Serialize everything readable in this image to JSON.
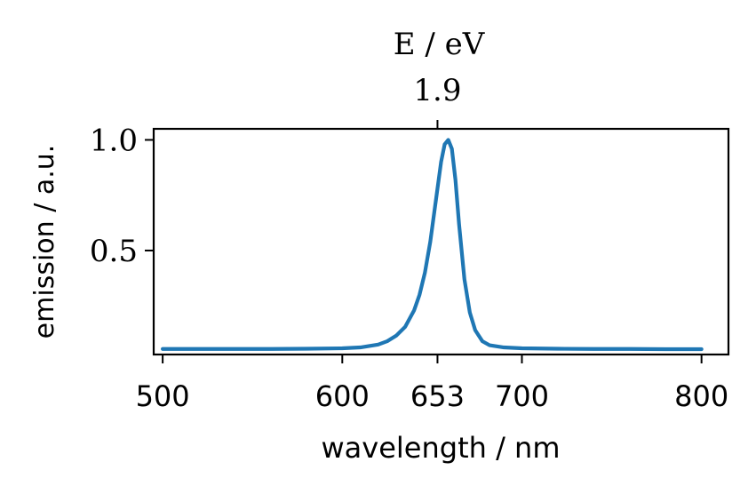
{
  "chart_data": {
    "type": "line",
    "xlabel": "wavelength / nm",
    "ylabel": "emission / a.u.",
    "top_axis_label": "E / eV",
    "xlim": [
      495,
      815
    ],
    "ylim": [
      0.03,
      1.05
    ],
    "x_ticks": [
      500,
      600,
      653,
      700,
      800
    ],
    "x_tick_labels": [
      "500",
      "600",
      "653",
      "700",
      "800"
    ],
    "y_ticks": [
      0.5,
      1.0
    ],
    "y_tick_labels": [
      "0.5",
      "1.0"
    ],
    "top_ticks": [
      653
    ],
    "top_tick_labels": [
      "1.9"
    ],
    "grid": false,
    "series": [
      {
        "color": "#1f77b4",
        "peak_wavelength": 659,
        "peak_value": 1.0,
        "baseline": 0.055,
        "x": [
          500,
          520,
          540,
          560,
          580,
          600,
          610,
          620,
          625,
          630,
          635,
          640,
          643,
          646,
          649,
          652,
          655,
          657,
          659,
          661,
          663,
          665,
          668,
          671,
          674,
          678,
          682,
          690,
          700,
          720,
          740,
          760,
          780,
          800
        ],
        "values": [
          0.055,
          0.055,
          0.055,
          0.055,
          0.056,
          0.058,
          0.062,
          0.075,
          0.09,
          0.115,
          0.155,
          0.23,
          0.3,
          0.4,
          0.54,
          0.72,
          0.9,
          0.98,
          1.0,
          0.96,
          0.82,
          0.62,
          0.37,
          0.22,
          0.14,
          0.09,
          0.072,
          0.062,
          0.058,
          0.056,
          0.055,
          0.055,
          0.054,
          0.054
        ]
      }
    ]
  }
}
